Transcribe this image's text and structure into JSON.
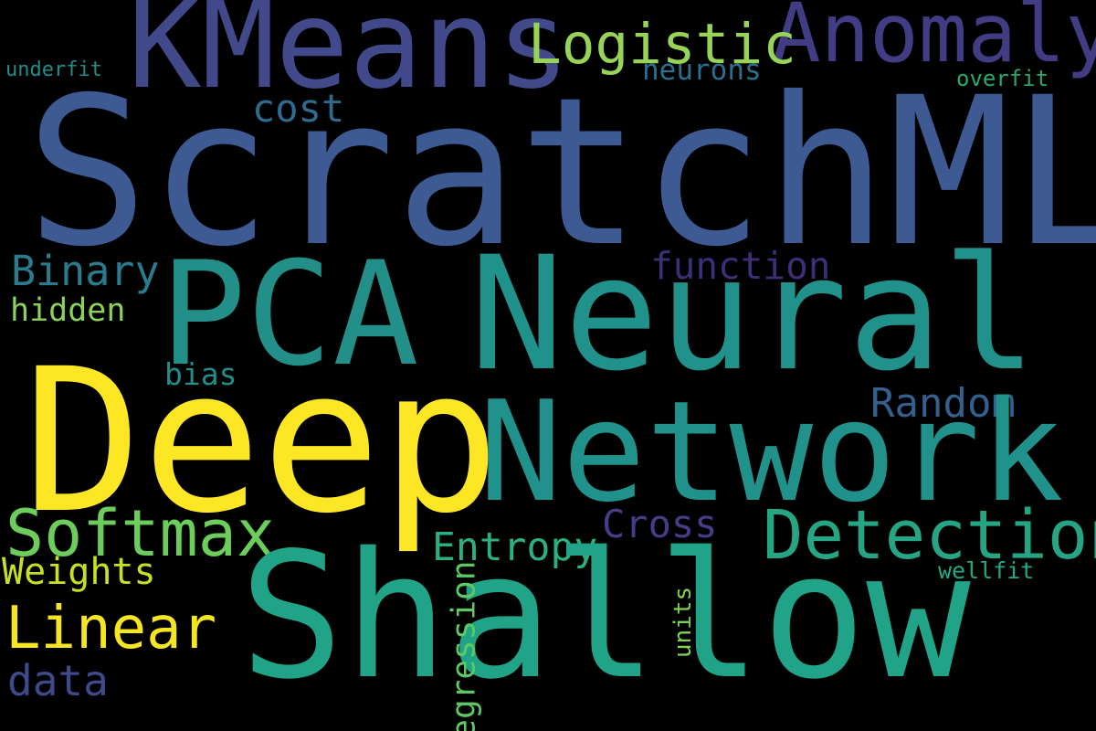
{
  "words": [
    {
      "text": "ScratchML",
      "color": "#3e5a93"
    },
    {
      "text": "KMeans",
      "color": "#42498a"
    },
    {
      "text": "Anomaly",
      "color": "#423c84"
    },
    {
      "text": "Logistic",
      "color": "#97d356"
    },
    {
      "text": "neurons",
      "color": "#2a6f8e"
    },
    {
      "text": "underfit",
      "color": "#1f8e8a"
    },
    {
      "text": "overfit",
      "color": "#27a86e"
    },
    {
      "text": "cost",
      "color": "#2e6b8e"
    },
    {
      "text": "PCA",
      "color": "#228f89"
    },
    {
      "text": "Neural",
      "color": "#21918c"
    },
    {
      "text": "Binary",
      "color": "#2a7b8e"
    },
    {
      "text": "function",
      "color": "#3d2e75"
    },
    {
      "text": "hidden",
      "color": "#8cd25a"
    },
    {
      "text": "bias",
      "color": "#1f8f8a"
    },
    {
      "text": "Random",
      "color": "#35608d"
    },
    {
      "text": "Deep",
      "color": "#fde725"
    },
    {
      "text": "Network",
      "color": "#21918c"
    },
    {
      "text": "Softmax",
      "color": "#6ccd5a"
    },
    {
      "text": "Cross",
      "color": "#473c87"
    },
    {
      "text": "Detection",
      "color": "#26a585"
    },
    {
      "text": "Entropy",
      "color": "#2bb07f"
    },
    {
      "text": "Weights",
      "color": "#c8e021"
    },
    {
      "text": "wellfit",
      "color": "#22a884"
    },
    {
      "text": "Linear",
      "color": "#f6e620"
    },
    {
      "text": "Shallow",
      "color": "#20a386"
    },
    {
      "text": "data",
      "color": "#3e4a89"
    },
    {
      "text": "units",
      "color": "#7fd34e"
    },
    {
      "text": "Regression",
      "color": "#5ec962"
    }
  ]
}
